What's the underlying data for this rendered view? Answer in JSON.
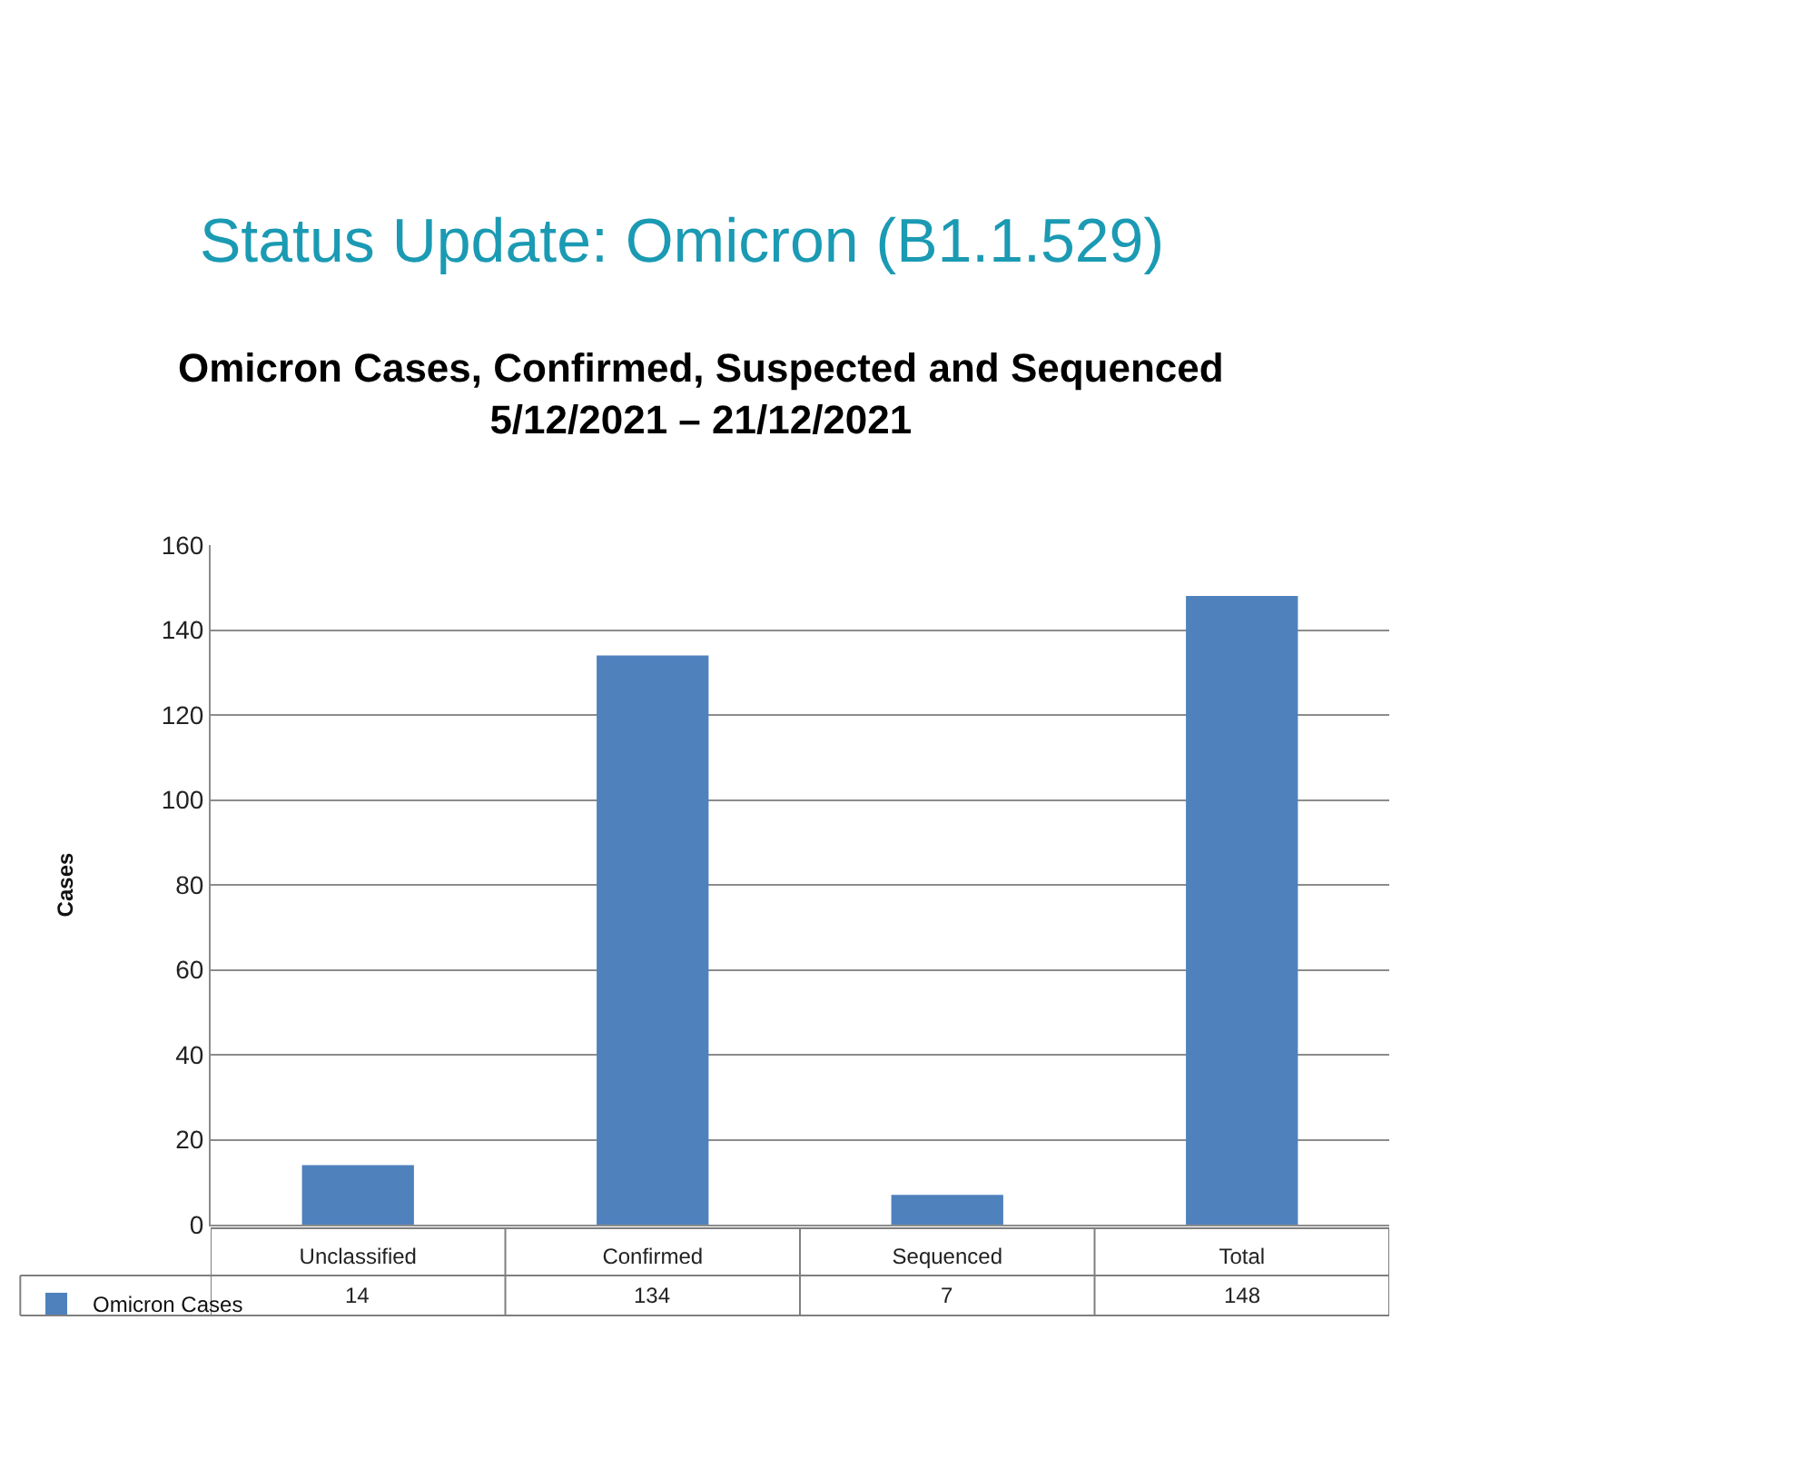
{
  "chart_data": {
    "type": "bar",
    "title": "Status Update: Omicron (B1.1.529)",
    "subtitle": "Omicron Cases, Confirmed, Suspected and Sequenced\n5/12/2021 – 21/12/2021",
    "ylabel": "Cases",
    "categories": [
      "Unclassified",
      "Confirmed",
      "Sequenced",
      "Total"
    ],
    "series": [
      {
        "name": "Omicron Cases",
        "color": "#4f81bd",
        "values": [
          14,
          134,
          7,
          148
        ]
      }
    ],
    "ylim": [
      0,
      160
    ],
    "yticks": [
      0,
      20,
      40,
      60,
      80,
      100,
      120,
      140,
      160
    ],
    "grid": "y",
    "legend": "bottom left",
    "data_labels": true
  }
}
